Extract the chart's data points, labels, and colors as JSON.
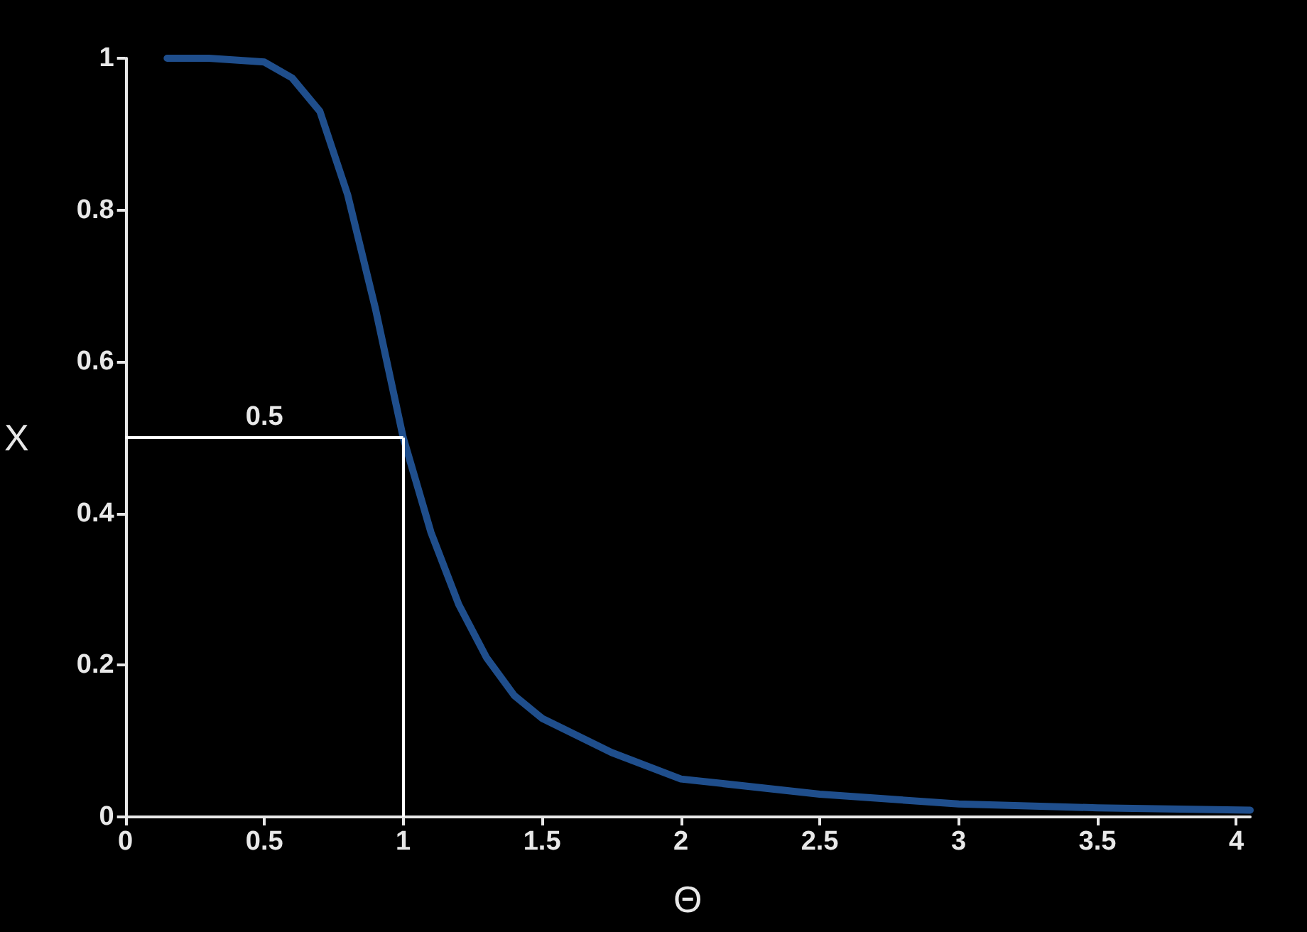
{
  "chart_data": {
    "type": "line",
    "xlabel": "Θ",
    "ylabel": "X",
    "x": [
      0.15,
      0.3,
      0.5,
      0.6,
      0.7,
      0.8,
      0.9,
      1.0,
      1.1,
      1.2,
      1.3,
      1.4,
      1.5,
      1.75,
      2.0,
      2.5,
      3.0,
      3.5,
      4.05
    ],
    "series": [
      {
        "color": "#1f4e8c",
        "values": [
          1,
          1,
          0.995,
          0.974,
          0.93,
          0.82,
          0.67,
          0.5,
          0.375,
          0.28,
          0.21,
          0.16,
          0.13,
          0.085,
          0.05,
          0.03,
          0.017,
          0.012,
          0.009
        ]
      }
    ],
    "xlim": [
      0,
      4.05
    ],
    "xticks": [
      0,
      0.5,
      1,
      1.5,
      2,
      2.5,
      3,
      3.5,
      4
    ],
    "ylim": [
      0,
      1
    ],
    "yticks": [
      0,
      0.2,
      0.4,
      0.6,
      0.8,
      1
    ],
    "ref_lines": [
      {
        "axis": "y",
        "value": 0.5,
        "label": "0.5",
        "color": "#ffffff"
      },
      {
        "axis": "x",
        "value": 1,
        "label": null,
        "color": "#ffffff"
      }
    ],
    "grid": false,
    "marker": "none",
    "line_style": "solid"
  }
}
